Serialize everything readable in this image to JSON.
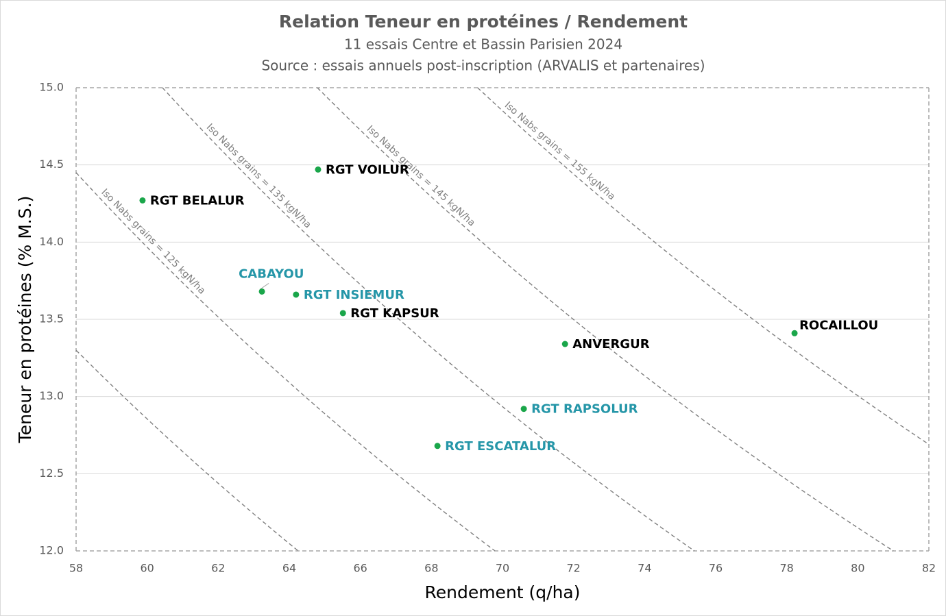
{
  "chart_data": {
    "type": "scatter",
    "title": "Relation Teneur en protéines / Rendement",
    "subtitle": [
      "11 essais Centre et Bassin Parisien 2024",
      "Source : essais annuels post-inscription (ARVALIS et partenaires)"
    ],
    "x_label": "Rendement (q/ha)",
    "y_label": "Teneur en protéines (% M.S.)",
    "xlim": [
      58,
      82
    ],
    "xticks": [
      58,
      60,
      62,
      64,
      66,
      68,
      70,
      72,
      74,
      76,
      78,
      80,
      82
    ],
    "ylim": [
      12,
      15
    ],
    "yticks": [
      {
        "value": 12,
        "label": "12.0"
      },
      {
        "value": 12.5,
        "label": "12.5"
      },
      {
        "value": 13,
        "label": "13.0"
      },
      {
        "value": 13.5,
        "label": "13.5"
      },
      {
        "value": 14,
        "label": "14.0"
      },
      {
        "value": 14.5,
        "label": "14.5"
      },
      {
        "value": 15,
        "label": "15.0"
      }
    ],
    "grid": true,
    "point_color": "#1aa64a",
    "points": [
      {
        "label": "RGT BELALUR",
        "x": 59.87,
        "y": 14.27,
        "label_color": "#000000"
      },
      {
        "label": "RGT VOILUR",
        "x": 64.81,
        "y": 14.47,
        "label_color": "#000000"
      },
      {
        "label": "CABAYOU",
        "x": 63.23,
        "y": 13.68,
        "label_color": "#2596a8"
      },
      {
        "label": "RGT INSIEMUR",
        "x": 64.19,
        "y": 13.66,
        "label_color": "#2596a8"
      },
      {
        "label": "RGT KAPSUR",
        "x": 65.51,
        "y": 13.54,
        "label_color": "#000000"
      },
      {
        "label": "ANVERGUR",
        "x": 71.76,
        "y": 13.34,
        "label_color": "#000000"
      },
      {
        "label": "ROCAILLOU",
        "x": 78.22,
        "y": 13.41,
        "label_color": "#000000"
      },
      {
        "label": "RGT RAPSOLUR",
        "x": 70.6,
        "y": 12.92,
        "label_color": "#2596a8"
      },
      {
        "label": "RGT ESCATALUR",
        "x": 68.17,
        "y": 12.68,
        "label_color": "#2596a8"
      }
    ],
    "iso_lines": [
      {
        "x": [
          58,
          64.25
        ],
        "y": [
          13.3,
          12
        ]
      },
      {
        "label": "Iso Nabs grains = 125 kgN/ha",
        "x": [
          58,
          69.79
        ],
        "y": [
          14.45,
          12
        ]
      },
      {
        "label": "Iso Nabs grains = 135 kgN/ha",
        "x": [
          60.43,
          75.4
        ],
        "y": [
          15,
          12
        ]
      },
      {
        "label": "Iso Nabs grains = 145 kgN/ha",
        "x": [
          64.79,
          81
        ],
        "y": [
          15,
          12
        ]
      },
      {
        "label": "Iso Nabs grains = 155 kgN/ha",
        "x": [
          69.3,
          82
        ],
        "y": [
          15,
          12.69
        ]
      }
    ]
  }
}
